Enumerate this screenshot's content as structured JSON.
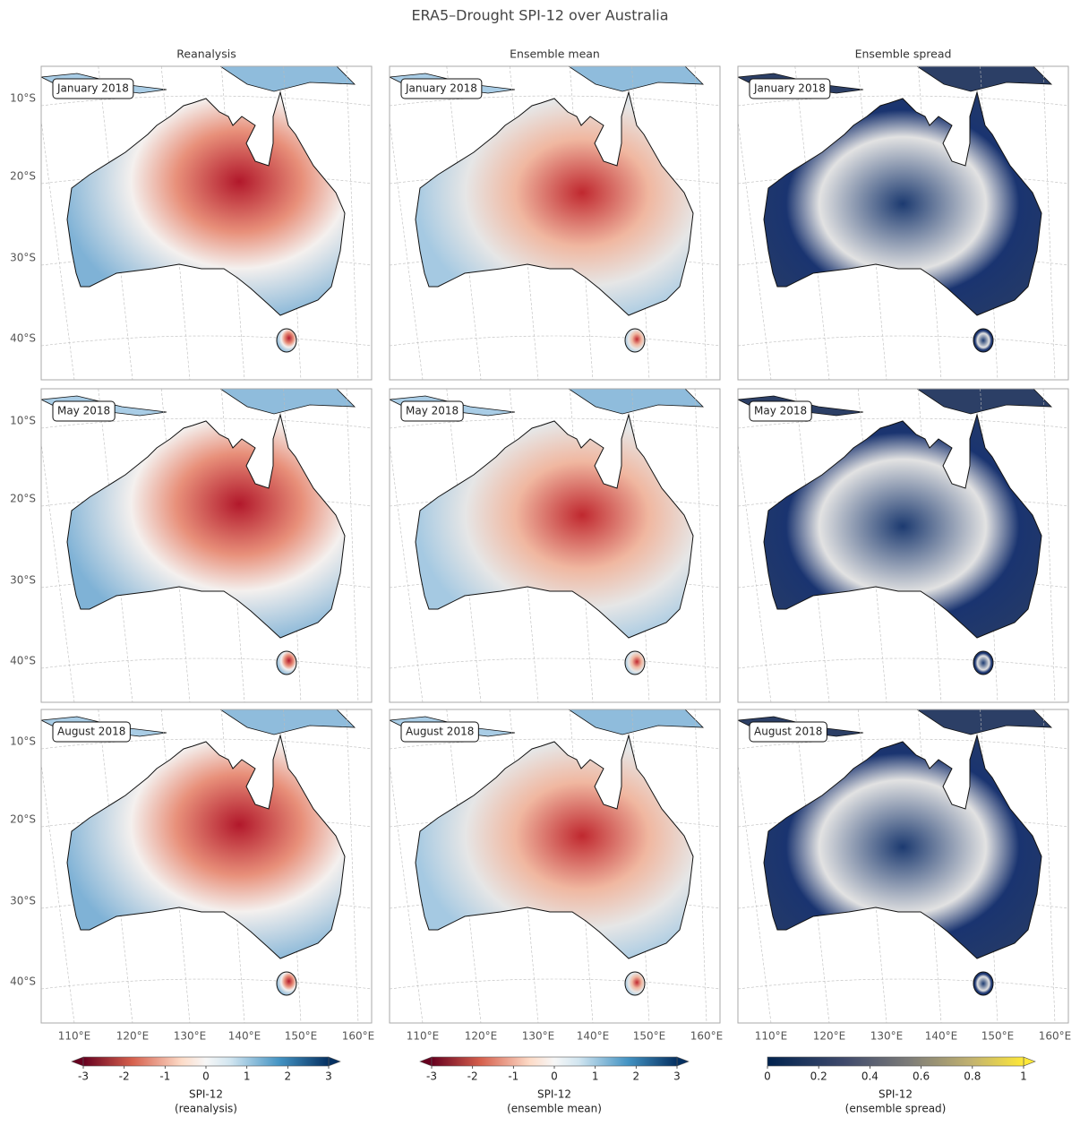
{
  "title": "ERA5–Drought SPI-12 over Australia",
  "columns": [
    {
      "title": "Reanalysis",
      "colorbar": {
        "label_lines": [
          "SPI-12",
          "(reanalysis)"
        ],
        "lim": [
          -3,
          3
        ],
        "ticks": [
          -3,
          -2,
          -1,
          0,
          1,
          2,
          3
        ],
        "extend": "both",
        "colormap": "RdBu"
      }
    },
    {
      "title": "Ensemble mean",
      "colorbar": {
        "label_lines": [
          "SPI-12",
          "(ensemble mean)"
        ],
        "lim": [
          -3,
          3
        ],
        "ticks": [
          -3,
          -2,
          -1,
          0,
          1,
          2,
          3
        ],
        "extend": "both",
        "colormap": "RdBu"
      }
    },
    {
      "title": "Ensemble spread",
      "colorbar": {
        "label_lines": [
          "SPI-12",
          "(ensemble spread)"
        ],
        "lim": [
          0,
          1
        ],
        "ticks": [
          0,
          0.2,
          0.4,
          0.6,
          0.8,
          1
        ],
        "extend": "max",
        "colormap": "cividis"
      }
    }
  ],
  "rows": [
    {
      "label": "January 2018"
    },
    {
      "label": "May 2018"
    },
    {
      "label": "August 2018"
    }
  ],
  "lat_labels": [
    "10°S",
    "20°S",
    "30°S",
    "40°S"
  ],
  "lon_labels": [
    "110°E",
    "120°E",
    "130°E",
    "140°E",
    "150°E",
    "160°E"
  ]
}
